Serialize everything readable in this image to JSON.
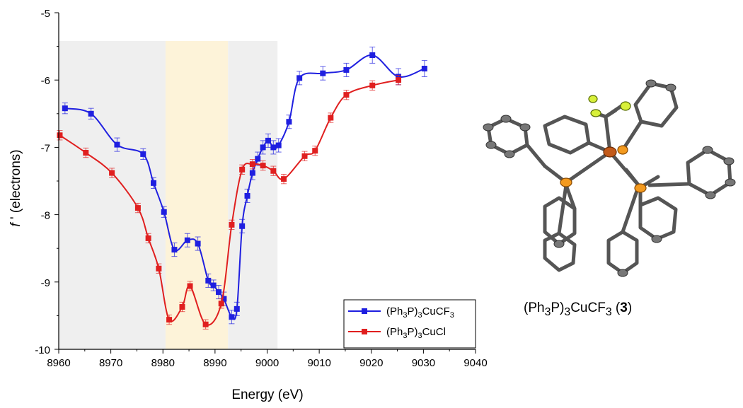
{
  "chart_data": {
    "type": "line",
    "xlabel": "Energy (eV)",
    "ylabel_italic": "f",
    "ylabel_rest": " ' (electrons)",
    "xlim": [
      8960,
      9040
    ],
    "ylim": [
      -10,
      -5
    ],
    "x_ticks": [
      8960,
      8970,
      8980,
      8990,
      9000,
      9010,
      9020,
      9030,
      9040
    ],
    "y_ticks": [
      -10,
      -9,
      -8,
      -7,
      -6,
      -5
    ],
    "grid": false,
    "legend_position": "bottom-right",
    "shaded_regions": [
      {
        "x0": 8960,
        "x1": 8980.5,
        "color": "#efefef"
      },
      {
        "x0": 8980.5,
        "x1": 8992.5,
        "color": "#fdf3d9"
      },
      {
        "x0": 8992.5,
        "x1": 9002,
        "color": "#efefef"
      }
    ],
    "series": [
      {
        "name": "(Ph3P)3CuCF3",
        "legend_parts": [
          "(Ph",
          "3",
          "P)",
          "3",
          "CuCF",
          "3"
        ],
        "color": "#1f1fe0",
        "x": [
          8961.2,
          8966.2,
          8971.2,
          8976.2,
          8978.2,
          8980.2,
          8982.2,
          8984.7,
          8986.7,
          8988.7,
          8989.7,
          8990.7,
          8991.7,
          8993.2,
          8994.2,
          8995.2,
          8996.2,
          8997.2,
          8998.2,
          8999.2,
          9000.2,
          9001.2,
          9002.2,
          9004.2,
          9006.2,
          9010.7,
          9015.2,
          9020.2,
          9025.2,
          9030.2
        ],
        "y": [
          -6.42,
          -6.5,
          -6.96,
          -7.1,
          -7.53,
          -7.96,
          -8.52,
          -8.38,
          -8.43,
          -8.98,
          -9.05,
          -9.15,
          -9.25,
          -9.52,
          -9.4,
          -8.17,
          -7.72,
          -7.38,
          -7.17,
          -7.0,
          -6.9,
          -7.0,
          -6.97,
          -6.62,
          -5.97,
          -5.9,
          -5.85,
          -5.63,
          -5.95,
          -5.83
        ],
        "err": [
          0.08,
          0.08,
          0.1,
          0.08,
          0.08,
          0.08,
          0.1,
          0.1,
          0.1,
          0.1,
          0.08,
          0.1,
          0.1,
          0.1,
          0.1,
          0.1,
          0.1,
          0.1,
          0.1,
          0.1,
          0.1,
          0.1,
          0.1,
          0.1,
          0.1,
          0.1,
          0.1,
          0.12,
          0.12,
          0.12
        ]
      },
      {
        "name": "(Ph3P)3CuCl",
        "legend_parts": [
          "(Ph",
          "3",
          "P)",
          "3",
          "CuCl",
          ""
        ],
        "color": "#e01f1f",
        "x": [
          8960.2,
          8965.2,
          8970.2,
          8975.2,
          8977.2,
          8979.2,
          8981.2,
          8983.7,
          8985.2,
          8988.2,
          8991.2,
          8993.2,
          8995.2,
          8997.2,
          8999.2,
          9001.2,
          9003.2,
          9007.2,
          9009.2,
          9012.2,
          9015.2,
          9020.2,
          9025.2
        ],
        "y": [
          -6.82,
          -7.08,
          -7.38,
          -7.9,
          -8.35,
          -8.8,
          -9.56,
          -9.37,
          -9.06,
          -9.63,
          -9.32,
          -8.15,
          -7.33,
          -7.25,
          -7.27,
          -7.35,
          -7.47,
          -7.13,
          -7.05,
          -6.56,
          -6.22,
          -6.08,
          -6.0
        ]
      }
    ]
  },
  "caption": {
    "parts": [
      "(Ph",
      "3",
      "P)",
      "3",
      "CuCF",
      "3",
      " (",
      "3",
      ")"
    ]
  }
}
